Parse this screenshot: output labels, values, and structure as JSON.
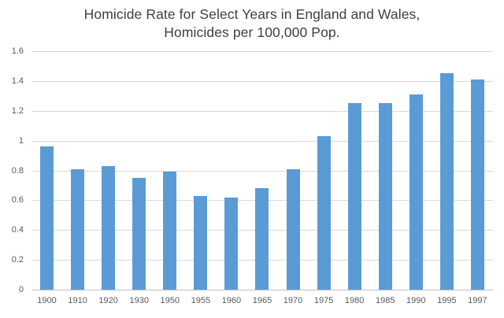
{
  "chart_data": {
    "type": "bar",
    "title_line1": "Homicide Rate for Select Years in England and Wales,",
    "title_line2": "Homicides per 100,000 Pop.",
    "categories": [
      "1900",
      "1910",
      "1920",
      "1930",
      "1950",
      "1955",
      "1960",
      "1965",
      "1970",
      "1975",
      "1980",
      "1985",
      "1990",
      "1995",
      "1997"
    ],
    "values": [
      0.96,
      0.81,
      0.83,
      0.75,
      0.79,
      0.63,
      0.62,
      0.68,
      0.81,
      1.03,
      1.25,
      1.25,
      1.31,
      1.45,
      1.41
    ],
    "xlabel": "",
    "ylabel": "",
    "ylim": [
      0,
      1.6
    ],
    "yticks": [
      {
        "value": 0,
        "label": "0"
      },
      {
        "value": 0.2,
        "label": "0.2"
      },
      {
        "value": 0.4,
        "label": "0.4"
      },
      {
        "value": 0.6,
        "label": "0.6"
      },
      {
        "value": 0.8,
        "label": "0.8"
      },
      {
        "value": 1,
        "label": "1"
      },
      {
        "value": 1.2,
        "label": "1.2"
      },
      {
        "value": 1.4,
        "label": "1.4"
      },
      {
        "value": 1.6,
        "label": "1.6"
      }
    ],
    "grid": true,
    "legend": "none",
    "colors": {
      "bar": "#5B9BD5",
      "gridline": "#D9D9D9",
      "axis_line": "#C0C0C0",
      "tick_label": "#595959",
      "title": "#404040",
      "background": "#FFFFFF"
    }
  }
}
